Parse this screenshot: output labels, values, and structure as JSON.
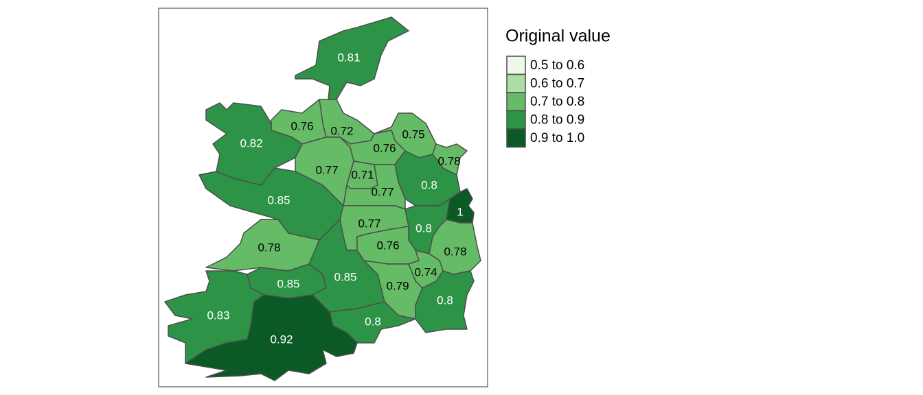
{
  "chart_data": {
    "type": "choropleth",
    "values": [
      0.81,
      0.76,
      0.72,
      0.75,
      0.82,
      0.76,
      0.78,
      0.77,
      0.71,
      0.8,
      0.77,
      0.85,
      1,
      0.77,
      0.8,
      0.78,
      0.76,
      0.78,
      0.74,
      0.85,
      0.85,
      0.79,
      0.8,
      0.83,
      0.8,
      0.92
    ],
    "legend": {
      "title": "Original value",
      "breaks": [
        0.5,
        0.6,
        0.7,
        0.8,
        0.9,
        1.0
      ],
      "labels": [
        "0.5 to 0.6",
        "0.6 to 0.7",
        "0.7 to 0.8",
        "0.8 to 0.9",
        "0.9 to 1.0"
      ],
      "colors": [
        "#edf8e9",
        "#addea6",
        "#66bb66",
        "#2d9447",
        "#0b5a25"
      ]
    }
  }
}
